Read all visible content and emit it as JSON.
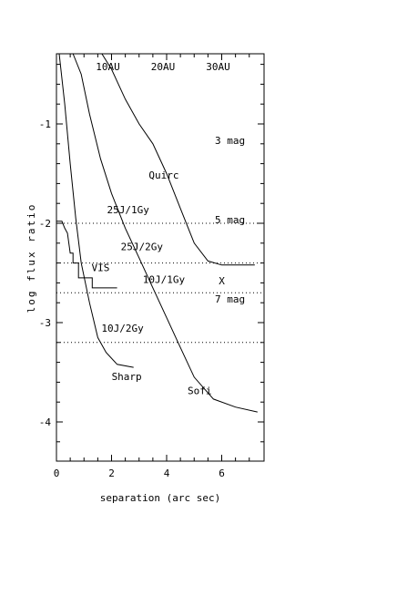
{
  "chart_data": {
    "type": "line",
    "title": "",
    "xlabel": "separation (arc sec)",
    "ylabel": "log flux ratio",
    "xlim": [
      0,
      7.5
    ],
    "ylim": [
      -4.4,
      -0.2
    ],
    "x_ticks": [
      {
        "value": 0,
        "label": "0"
      },
      {
        "value": 2,
        "label": "2"
      },
      {
        "value": 4,
        "label": "4"
      },
      {
        "value": 6,
        "label": "6"
      }
    ],
    "y_ticks": [
      {
        "value": -1,
        "label": "-1"
      },
      {
        "value": -2,
        "label": "-2"
      },
      {
        "value": -3,
        "label": "-3"
      },
      {
        "value": -4,
        "label": "-4"
      }
    ],
    "top_axis_labels": [
      {
        "x": 2.0,
        "label": "10AU"
      },
      {
        "x": 4.0,
        "label": "20AU"
      },
      {
        "x": 6.0,
        "label": "30AU"
      }
    ],
    "reference_lines": [
      {
        "y": -2.0,
        "label": "25J/1Gy",
        "label_x": 2.6,
        "label_y": -1.9
      },
      {
        "y": -2.4,
        "label": "25J/2Gy",
        "label_x": 3.1,
        "label_y": -2.27
      },
      {
        "y": -2.7,
        "label": "10J/1Gy",
        "label_x": 3.9,
        "label_y": -2.6
      },
      {
        "y": -3.2,
        "label": "10J/2Gy",
        "label_x": 2.4,
        "label_y": -3.09
      }
    ],
    "magnitude_labels": [
      {
        "x": 6.3,
        "y": -1.2,
        "label": "3 mag"
      },
      {
        "x": 6.3,
        "y": -2.0,
        "label": "5 mag"
      },
      {
        "x": 6.3,
        "y": -2.8,
        "label": "7 mag"
      }
    ],
    "series": [
      {
        "name": "Quirc",
        "label_x": 3.9,
        "label_y": -1.55,
        "points": [
          [
            1.65,
            -0.2
          ],
          [
            2.0,
            -0.45
          ],
          [
            2.5,
            -0.75
          ],
          [
            3.0,
            -1.0
          ],
          [
            3.5,
            -1.2
          ],
          [
            4.0,
            -1.5
          ],
          [
            4.5,
            -1.85
          ],
          [
            5.0,
            -2.2
          ],
          [
            5.5,
            -2.38
          ],
          [
            6.0,
            -2.42
          ],
          [
            7.2,
            -2.42
          ]
        ]
      },
      {
        "name": "Sofi",
        "label_x": 5.2,
        "label_y": -3.72,
        "points": [
          [
            0.6,
            -0.2
          ],
          [
            0.9,
            -0.5
          ],
          [
            1.2,
            -0.9
          ],
          [
            1.6,
            -1.35
          ],
          [
            2.0,
            -1.7
          ],
          [
            2.5,
            -2.05
          ],
          [
            3.0,
            -2.35
          ],
          [
            3.5,
            -2.65
          ],
          [
            4.0,
            -2.95
          ],
          [
            4.5,
            -3.25
          ],
          [
            5.0,
            -3.55
          ],
          [
            5.7,
            -3.77
          ],
          [
            6.5,
            -3.85
          ],
          [
            7.3,
            -3.9
          ]
        ]
      },
      {
        "name": "Sharp",
        "label_x": 2.55,
        "label_y": -3.58,
        "points": [
          [
            0.1,
            -0.2
          ],
          [
            0.3,
            -0.8
          ],
          [
            0.5,
            -1.4
          ],
          [
            0.7,
            -1.95
          ],
          [
            0.9,
            -2.4
          ],
          [
            1.2,
            -2.8
          ],
          [
            1.5,
            -3.15
          ],
          [
            1.8,
            -3.3
          ],
          [
            2.2,
            -3.42
          ],
          [
            2.8,
            -3.45
          ]
        ]
      },
      {
        "name": "VIS",
        "label_x": 1.6,
        "label_y": -2.48,
        "points": [
          [
            0.0,
            -1.98
          ],
          [
            0.2,
            -1.98
          ],
          [
            0.3,
            -2.05
          ],
          [
            0.4,
            -2.1
          ],
          [
            0.45,
            -2.2
          ],
          [
            0.5,
            -2.3
          ],
          [
            0.6,
            -2.3
          ],
          [
            0.6,
            -2.4
          ],
          [
            0.8,
            -2.4
          ],
          [
            0.8,
            -2.55
          ],
          [
            1.3,
            -2.55
          ],
          [
            1.3,
            -2.65
          ],
          [
            2.2,
            -2.65
          ]
        ]
      }
    ],
    "markers": [
      {
        "x": 6.0,
        "y": -2.58,
        "label": "X"
      }
    ]
  }
}
